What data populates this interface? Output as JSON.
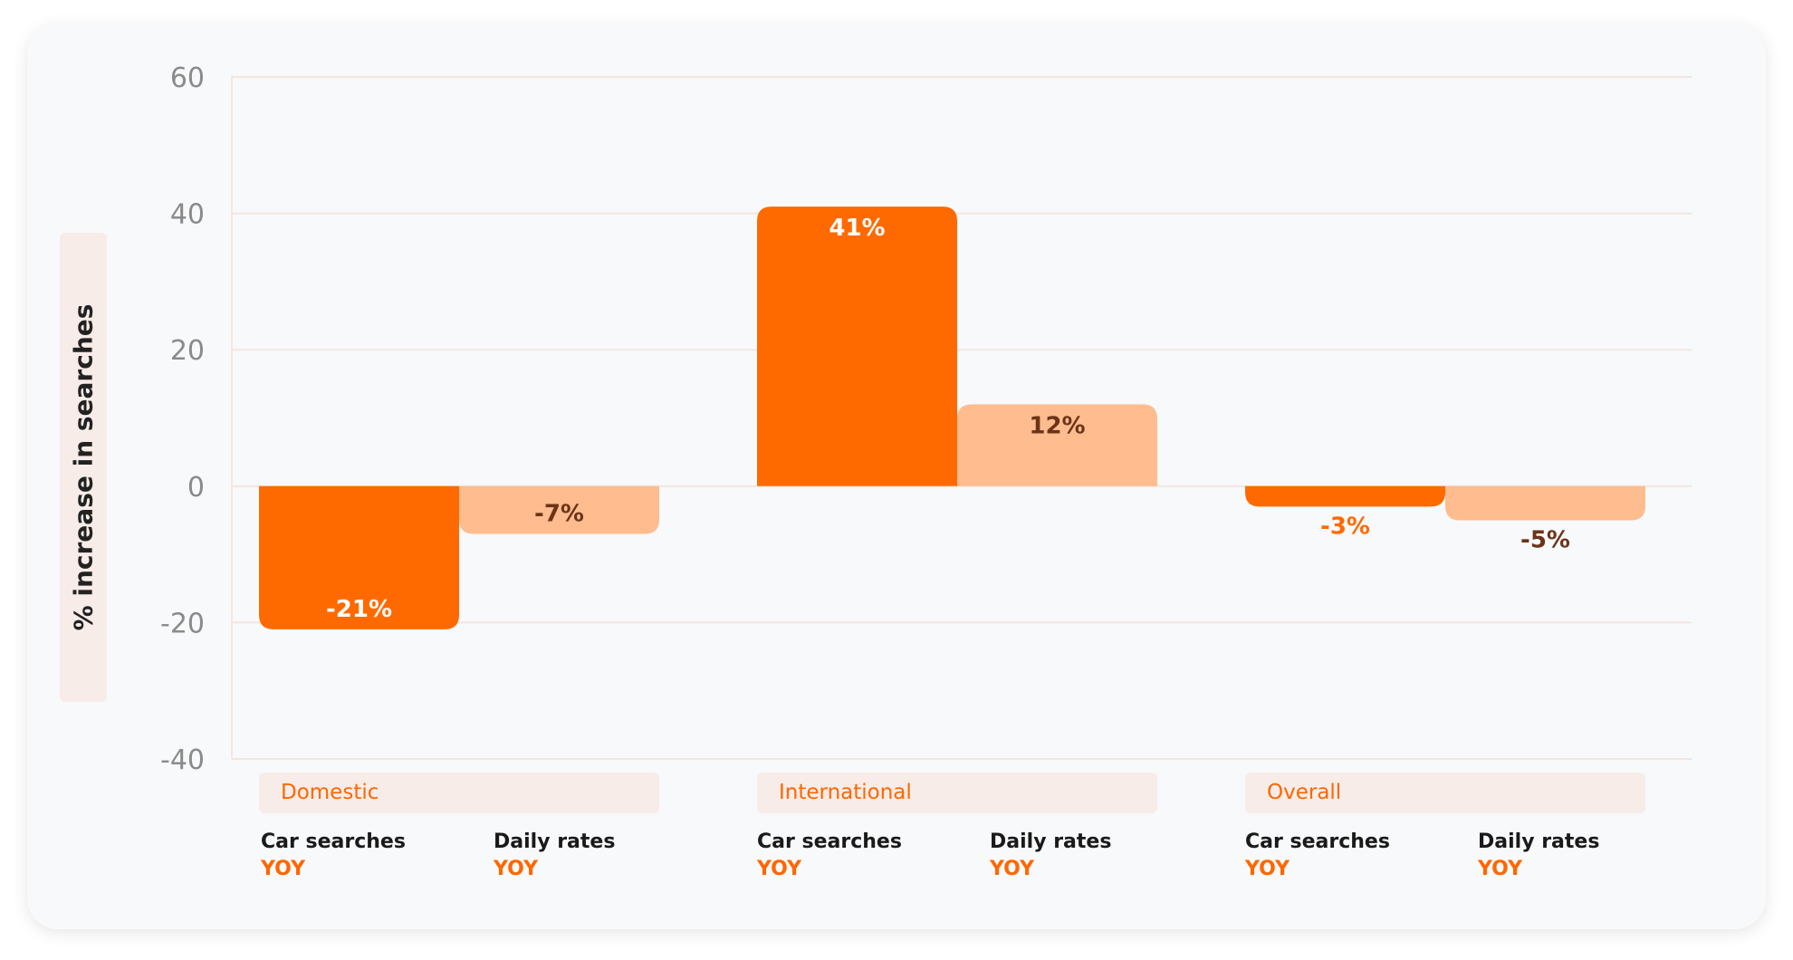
{
  "chart_data": {
    "type": "bar",
    "ylabel": "% increase in searches",
    "ylim": [
      -40,
      60
    ],
    "yticks": [
      60,
      40,
      20,
      0,
      -20,
      -40
    ],
    "grid": true,
    "groups": [
      {
        "name": "Domestic",
        "bars": [
          {
            "name": "Car searches",
            "metric": "YOY",
            "value": -21,
            "label": "-21%"
          },
          {
            "name": "Daily rates",
            "metric": "YOY",
            "value": -7,
            "label": "-7%"
          }
        ]
      },
      {
        "name": "International",
        "bars": [
          {
            "name": "Car searches",
            "metric": "YOY",
            "value": 41,
            "label": "41%"
          },
          {
            "name": "Daily rates",
            "metric": "YOY",
            "value": 12,
            "label": "12%"
          }
        ]
      },
      {
        "name": "Overall",
        "bars": [
          {
            "name": "Car searches",
            "metric": "YOY",
            "value": -3,
            "label": "-3%"
          },
          {
            "name": "Daily rates",
            "metric": "YOY",
            "value": -5,
            "label": "-5%"
          }
        ]
      }
    ],
    "colors": {
      "car_searches": "#ff6a00",
      "daily_rates": "#ffbc8f",
      "label_on_dark": "#ffffff",
      "label_on_light": "#6b3418",
      "label_outside_dark": "#ff6a00",
      "grid": "#f3e6e0",
      "tick": "#8a8a8a",
      "group_name": "#ff6600"
    }
  }
}
